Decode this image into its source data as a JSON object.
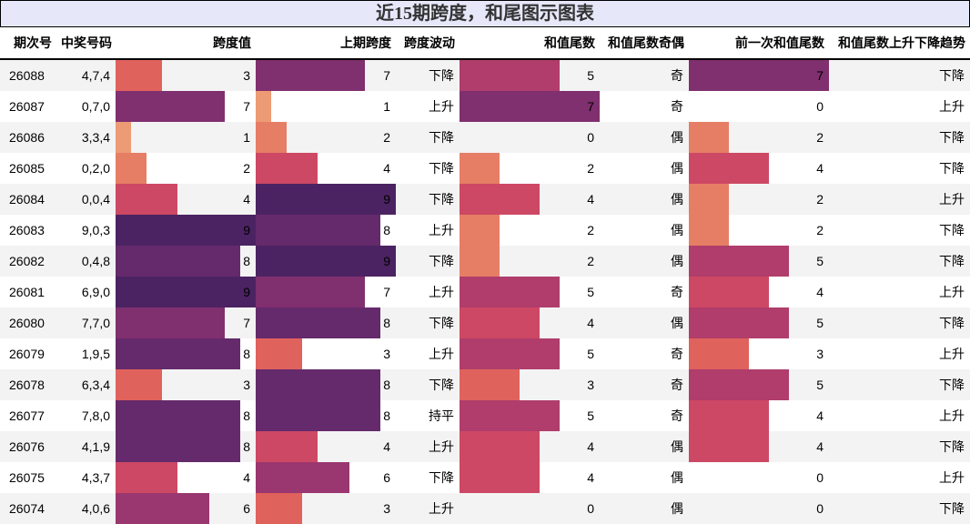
{
  "title": "近15期跨度，和尾图示图表",
  "headers": [
    "期次号",
    "中奖号码",
    "跨度值",
    "上期跨度",
    "跨度波动",
    "和值尾数",
    "和值尾数奇偶",
    "前一次和值尾数",
    "和值尾数上升下降趋势"
  ],
  "palette": {
    "0": "#ffffff",
    "1": "#ec9b74",
    "2": "#e67e65",
    "3": "#e0625d",
    "4": "#cd4864",
    "5": "#b03d6b",
    "6": "#9a3670",
    "7": "#802f6f",
    "8": "#652a6b",
    "9": "#4b2362"
  },
  "rows": [
    {
      "issue": "26088",
      "numbers": "4,7,4",
      "span": 3,
      "prev_span": 7,
      "span_trend": "下降",
      "sum_tail": 5,
      "parity": "奇",
      "prev_sum_tail": 7,
      "tail_trend": "下降"
    },
    {
      "issue": "26087",
      "numbers": "0,7,0",
      "span": 7,
      "prev_span": 1,
      "span_trend": "上升",
      "sum_tail": 7,
      "parity": "奇",
      "prev_sum_tail": 0,
      "tail_trend": "上升"
    },
    {
      "issue": "26086",
      "numbers": "3,3,4",
      "span": 1,
      "prev_span": 2,
      "span_trend": "下降",
      "sum_tail": 0,
      "parity": "偶",
      "prev_sum_tail": 2,
      "tail_trend": "下降"
    },
    {
      "issue": "26085",
      "numbers": "0,2,0",
      "span": 2,
      "prev_span": 4,
      "span_trend": "下降",
      "sum_tail": 2,
      "parity": "偶",
      "prev_sum_tail": 4,
      "tail_trend": "下降"
    },
    {
      "issue": "26084",
      "numbers": "0,0,4",
      "span": 4,
      "prev_span": 9,
      "span_trend": "下降",
      "sum_tail": 4,
      "parity": "偶",
      "prev_sum_tail": 2,
      "tail_trend": "上升"
    },
    {
      "issue": "26083",
      "numbers": "9,0,3",
      "span": 9,
      "prev_span": 8,
      "span_trend": "上升",
      "sum_tail": 2,
      "parity": "偶",
      "prev_sum_tail": 2,
      "tail_trend": "下降"
    },
    {
      "issue": "26082",
      "numbers": "0,4,8",
      "span": 8,
      "prev_span": 9,
      "span_trend": "下降",
      "sum_tail": 2,
      "parity": "偶",
      "prev_sum_tail": 5,
      "tail_trend": "下降"
    },
    {
      "issue": "26081",
      "numbers": "6,9,0",
      "span": 9,
      "prev_span": 7,
      "span_trend": "上升",
      "sum_tail": 5,
      "parity": "奇",
      "prev_sum_tail": 4,
      "tail_trend": "上升"
    },
    {
      "issue": "26080",
      "numbers": "7,7,0",
      "span": 7,
      "prev_span": 8,
      "span_trend": "下降",
      "sum_tail": 4,
      "parity": "偶",
      "prev_sum_tail": 5,
      "tail_trend": "下降"
    },
    {
      "issue": "26079",
      "numbers": "1,9,5",
      "span": 8,
      "prev_span": 3,
      "span_trend": "上升",
      "sum_tail": 5,
      "parity": "奇",
      "prev_sum_tail": 3,
      "tail_trend": "上升"
    },
    {
      "issue": "26078",
      "numbers": "6,3,4",
      "span": 3,
      "prev_span": 8,
      "span_trend": "下降",
      "sum_tail": 3,
      "parity": "奇",
      "prev_sum_tail": 5,
      "tail_trend": "下降"
    },
    {
      "issue": "26077",
      "numbers": "7,8,0",
      "span": 8,
      "prev_span": 8,
      "span_trend": "持平",
      "sum_tail": 5,
      "parity": "奇",
      "prev_sum_tail": 4,
      "tail_trend": "上升"
    },
    {
      "issue": "26076",
      "numbers": "4,1,9",
      "span": 8,
      "prev_span": 4,
      "span_trend": "上升",
      "sum_tail": 4,
      "parity": "偶",
      "prev_sum_tail": 4,
      "tail_trend": "下降"
    },
    {
      "issue": "26075",
      "numbers": "4,3,7",
      "span": 4,
      "prev_span": 6,
      "span_trend": "下降",
      "sum_tail": 4,
      "parity": "偶",
      "prev_sum_tail": 0,
      "tail_trend": "上升"
    },
    {
      "issue": "26074",
      "numbers": "4,0,6",
      "span": 6,
      "prev_span": 3,
      "span_trend": "上升",
      "sum_tail": 0,
      "parity": "偶",
      "prev_sum_tail": 0,
      "tail_trend": "下降"
    }
  ]
}
